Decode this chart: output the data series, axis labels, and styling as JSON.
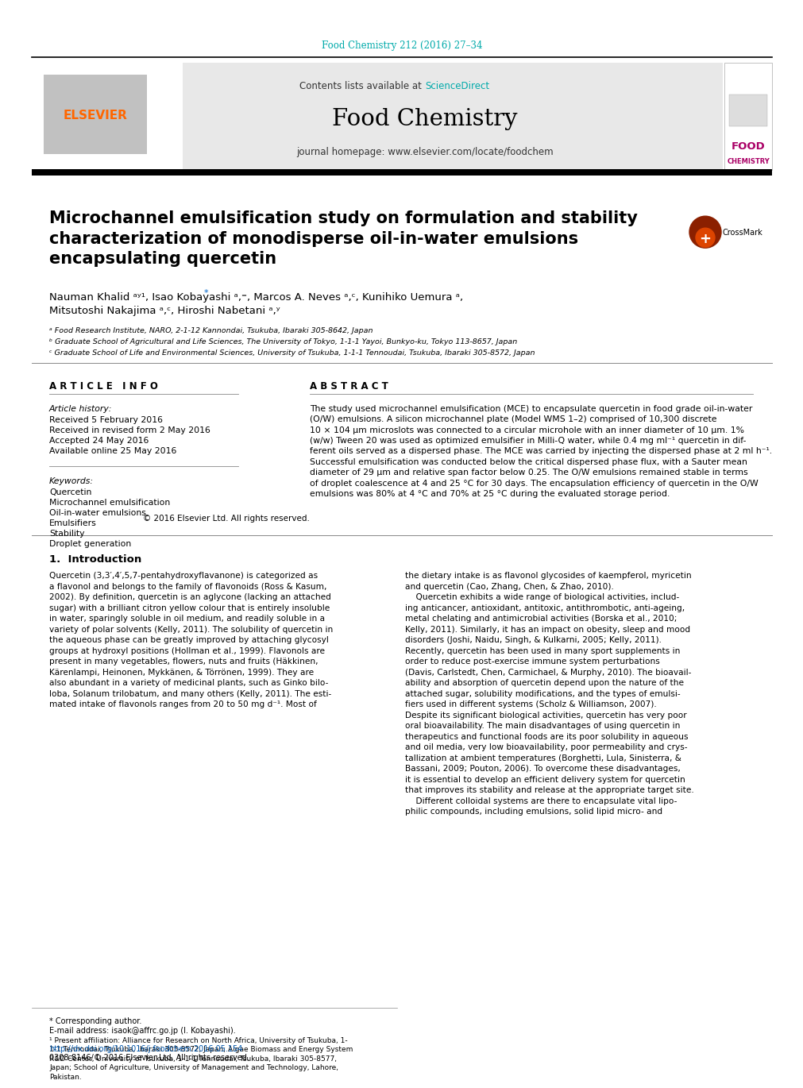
{
  "bg_color": "#ffffff",
  "page_top_text": "Food Chemistry 212 (2016) 27–34",
  "page_top_color": "#00AAAA",
  "header_bg": "#E8E8E8",
  "header_text_contents": "Contents lists available at ",
  "header_sciencedirect": "ScienceDirect",
  "header_sd_color": "#00AAAA",
  "journal_title": "Food Chemistry",
  "journal_homepage": "journal homepage: www.elsevier.com/locate/foodchem",
  "elsevier_color": "#FF6600",
  "article_title": "Microchannel emulsification study on formulation and stability\ncharacterization of monodisperse oil-in-water emulsions\nencapsulating quercetin",
  "affil_a": "ᵃ Food Research Institute, NARO, 2-1-12 Kannondai, Tsukuba, Ibaraki 305-8642, Japan",
  "affil_b": "ᵇ Graduate School of Agricultural and Life Sciences, The University of Tokyo, 1-1-1 Yayoi, Bunkyo-ku, Tokyo 113-8657, Japan",
  "affil_c": "ᶜ Graduate School of Life and Environmental Sciences, University of Tsukuba, 1-1-1 Tennoudai, Tsukuba, Ibaraki 305-8572, Japan",
  "article_info_title": "A R T I C L E   I N F O",
  "article_history_label": "Article history:",
  "received": "Received 5 February 2016",
  "revised": "Received in revised form 2 May 2016",
  "accepted": "Accepted 24 May 2016",
  "available": "Available online 25 May 2016",
  "keywords_label": "Keywords:",
  "keywords": [
    "Quercetin",
    "Microchannel emulsification",
    "Oil-in-water emulsions",
    "Emulsifiers",
    "Stability",
    "Droplet generation"
  ],
  "abstract_title": "A B S T R A C T",
  "abstract_text": "The study used microchannel emulsification (MCE) to encapsulate quercetin in food grade oil-in-water\n(O/W) emulsions. A silicon microchannel plate (Model WMS 1–2) comprised of 10,300 discrete\n10 × 104 μm microslots was connected to a circular microhole with an inner diameter of 10 μm. 1%\n(w/w) Tween 20 was used as optimized emulsifier in Milli-Q water, while 0.4 mg ml⁻¹ quercetin in dif-\nferent oils served as a dispersed phase. The MCE was carried by injecting the dispersed phase at 2 ml h⁻¹.\nSuccessful emulsification was conducted below the critical dispersed phase flux, with a Sauter mean\ndiameter of 29 μm and relative span factor below 0.25. The O/W emulsions remained stable in terms\nof droplet coalescence at 4 and 25 °C for 30 days. The encapsulation efficiency of quercetin in the O/W\nemulsions was 80% at 4 °C and 70% at 25 °C during the evaluated storage period.",
  "copyright": "© 2016 Elsevier Ltd. All rights reserved.",
  "intro_title": "1.  Introduction",
  "intro_col1": "Quercetin (3,3′,4′,5,7-pentahydroxyflavanone) is categorized as\na flavonol and belongs to the family of flavonoids (Ross & Kasum,\n2002). By definition, quercetin is an aglycone (lacking an attached\nsugar) with a brilliant citron yellow colour that is entirely insoluble\nin water, sparingly soluble in oil medium, and readily soluble in a\nvariety of polar solvents (Kelly, 2011). The solubility of quercetin in\nthe aqueous phase can be greatly improved by attaching glycosyl\ngroups at hydroxyl positions (Hollman et al., 1999). Flavonols are\npresent in many vegetables, flowers, nuts and fruits (Häkkinen,\nKärenlampi, Heinonen, Mykkänen, & Törrönen, 1999). They are\nalso abundant in a variety of medicinal plants, such as Ginko bilo-\nloba, Solanum trilobatum, and many others (Kelly, 2011). The esti-\nmated intake of flavonols ranges from 20 to 50 mg d⁻¹. Most of",
  "intro_col2": "the dietary intake is as flavonol glycosides of kaempferol, myricetin\nand quercetin (Cao, Zhang, Chen, & Zhao, 2010).\n    Quercetin exhibits a wide range of biological activities, includ-\ning anticancer, antioxidant, antitoxic, antithrombotic, anti-ageing,\nmetal chelating and antimicrobial activities (Borska et al., 2010;\nKelly, 2011). Similarly, it has an impact on obesity, sleep and mood\ndisorders (Joshi, Naidu, Singh, & Kulkarni, 2005; Kelly, 2011).\nRecently, quercetin has been used in many sport supplements in\norder to reduce post-exercise immune system perturbations\n(Davis, Carlstedt, Chen, Carmichael, & Murphy, 2010). The bioavail-\nability and absorption of quercetin depend upon the nature of the\nattached sugar, solubility modifications, and the types of emulsi-\nfiers used in different systems (Scholz & Williamson, 2007).\nDespite its significant biological activities, quercetin has very poor\noral bioavailability. The main disadvantages of using quercetin in\ntherapeutics and functional foods are its poor solubility in aqueous\nand oil media, very low bioavailability, poor permeability and crys-\ntallization at ambient temperatures (Borghetti, Lula, Sinisterra, &\nBassani, 2009; Pouton, 2006). To overcome these disadvantages,\nit is essential to develop an efficient delivery system for quercetin\nthat improves its stability and release at the appropriate target site.\n    Different colloidal systems are there to encapsulate vital lipo-\nphilic compounds, including emulsions, solid lipid micro- and",
  "footnote_star": "* Corresponding author.",
  "footnote_email": "E-mail address: isaok@affrc.go.jp (I. Kobayashi).",
  "footnote_1": "¹ Present affiliation: Alliance for Research on North Africa, University of Tsukuba, 1-\n1-1 Tennoudai, Tsukuba, Ibaraki 305-8572, Japan; Algae Biomass and Energy System\nR&D Center, University of Tsukuba, 1-1-1 Tennoudai, Tsukuba, Ibaraki 305-8577,\nJapan; School of Agriculture, University of Management and Technology, Lahore,\nPakistan.",
  "doi_text": "http://dx.doi.org/10.1016/j.foodchem.2016.05.154",
  "issn_text": "0308-8146/© 2016 Elsevier Ltd. All rights reserved."
}
